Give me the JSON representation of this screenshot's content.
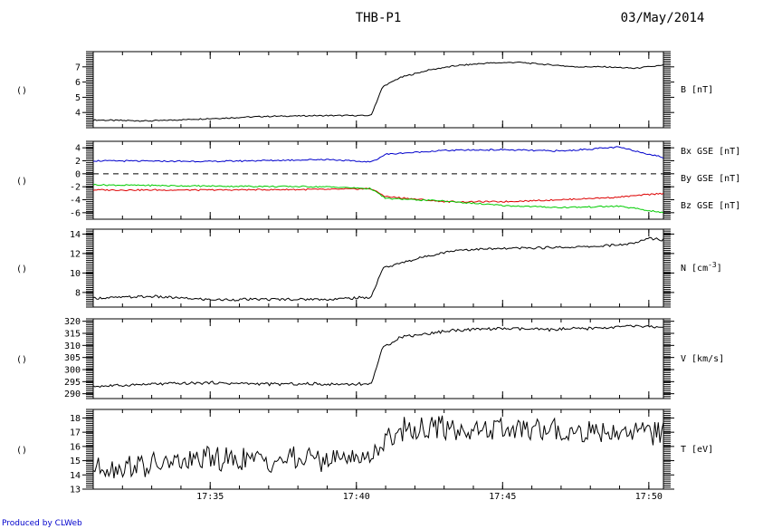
{
  "title": "THB-P1",
  "date": "03/May/2014",
  "credit": "Produced by CLWeb",
  "colors": {
    "Bx": "#dd0000",
    "By": "#00cc00",
    "Bz": "#0000cc",
    "line": "#000000"
  },
  "chart_data": {
    "type": "line",
    "x_range": [
      "17:31",
      "17:50.5"
    ],
    "x_ticks": [
      "17:35",
      "17:40",
      "17:45",
      "17:50"
    ],
    "panels": [
      {
        "id": "b",
        "ylabel": "B [nT]",
        "left_label": "()",
        "ylim": [
          3,
          8
        ],
        "yticks": [
          "4",
          "5",
          "6",
          "7"
        ],
        "series": [
          {
            "name": "",
            "color": "#000000",
            "x": [
              "17:31",
              "17:33",
              "17:35",
              "17:37",
              "17:39",
              "17:40.5",
              "17:40.9",
              "17:41.5",
              "17:42.5",
              "17:43.5",
              "17:44.5",
              "17:45.5",
              "17:46.5",
              "17:47.5",
              "17:48.5",
              "17:49.5",
              "17:50",
              "17:50.5"
            ],
            "y": [
              3.5,
              3.45,
              3.6,
              3.75,
              3.8,
              3.8,
              5.7,
              6.3,
              6.8,
              7.1,
              7.25,
              7.3,
              7.15,
              7.0,
              7.0,
              6.9,
              7.0,
              7.1
            ]
          }
        ]
      },
      {
        "id": "bxyz",
        "ylabel": "",
        "left_label": "()",
        "ylim": [
          -7,
          5
        ],
        "yticks": [
          "-6",
          "-4",
          "-2",
          "0",
          "2",
          "4"
        ],
        "zero_line": true,
        "legend": [
          "Bx GSE [nT]",
          "By GSE [nT]",
          "Bz GSE [nT]"
        ],
        "series": [
          {
            "name": "Bx GSE [nT]",
            "color": "#dd0000",
            "x": [
              "17:31",
              "17:35",
              "17:39",
              "17:40.5",
              "17:41",
              "17:43",
              "17:45",
              "17:47",
              "17:49",
              "17:50.5"
            ],
            "y": [
              -2.5,
              -2.5,
              -2.4,
              -2.3,
              -3.5,
              -4.3,
              -4.3,
              -4.0,
              -3.6,
              -3.0
            ]
          },
          {
            "name": "By GSE [nT]",
            "color": "#00cc00",
            "x": [
              "17:31",
              "17:35",
              "17:39",
              "17:40.5",
              "17:41",
              "17:43",
              "17:45",
              "17:47",
              "17:49",
              "17:50.5"
            ],
            "y": [
              -1.7,
              -1.9,
              -2.0,
              -2.3,
              -3.8,
              -4.2,
              -4.9,
              -5.2,
              -5.0,
              -6.0
            ]
          },
          {
            "name": "Bz GSE [nT]",
            "color": "#0000cc",
            "x": [
              "17:31",
              "17:35",
              "17:39",
              "17:40.5",
              "17:41",
              "17:43",
              "17:45",
              "17:47",
              "17:49",
              "17:50.5"
            ],
            "y": [
              2.0,
              1.9,
              2.2,
              1.8,
              3.0,
              3.6,
              3.7,
              3.5,
              4.1,
              2.5
            ]
          }
        ]
      },
      {
        "id": "n",
        "ylabel": "N [cm^-3]",
        "left_label": "()",
        "ylim": [
          6.5,
          14.5
        ],
        "yticks": [
          "8",
          "10",
          "12",
          "14"
        ],
        "series": [
          {
            "name": "",
            "color": "#000000",
            "x": [
              "17:31",
              "17:33",
              "17:35",
              "17:37",
              "17:39",
              "17:40.5",
              "17:40.9",
              "17:41.5",
              "17:42.5",
              "17:43.5",
              "17:45",
              "17:46.5",
              "17:48",
              "17:49.5",
              "17:50",
              "17:50.5"
            ],
            "y": [
              7.4,
              7.6,
              7.25,
              7.3,
              7.3,
              7.5,
              10.5,
              11.0,
              11.8,
              12.4,
              12.5,
              12.6,
              12.7,
              13.0,
              13.6,
              13.4
            ]
          }
        ]
      },
      {
        "id": "v",
        "ylabel": "V [km/s]",
        "left_label": "()",
        "ylim": [
          288,
          321
        ],
        "yticks": [
          "290",
          "295",
          "300",
          "305",
          "310",
          "315",
          "320"
        ],
        "series": [
          {
            "name": "",
            "color": "#000000",
            "x": [
              "17:31",
              "17:33",
              "17:35",
              "17:37",
              "17:39",
              "17:40.5",
              "17:40.9",
              "17:41.5",
              "17:42.5",
              "17:43.5",
              "17:45",
              "17:46.5",
              "17:48",
              "17:49.5",
              "17:50.5"
            ],
            "y": [
              293,
              294,
              294.5,
              294,
              294,
              294,
              309,
              313.5,
              315,
              316.5,
              317,
              316.5,
              317,
              318,
              317.5
            ]
          }
        ]
      },
      {
        "id": "t",
        "ylabel": "T [eV]",
        "left_label": "()",
        "ylim": [
          13,
          18.6
        ],
        "yticks": [
          "13",
          "14",
          "15",
          "16",
          "17",
          "18"
        ],
        "series": [
          {
            "name": "",
            "color": "#000000",
            "x": [
              "17:31",
              "17:33",
              "17:35",
              "17:37",
              "17:39",
              "17:40.5",
              "17:40.9",
              "17:41.5",
              "17:43",
              "17:45",
              "17:47",
              "17:49",
              "17:50.5"
            ],
            "y": [
              14.5,
              14.7,
              15.1,
              15.0,
              15.2,
              15.3,
              16.3,
              17.2,
              17.3,
              17.2,
              17.0,
              17.1,
              17.0
            ]
          }
        ]
      }
    ]
  }
}
